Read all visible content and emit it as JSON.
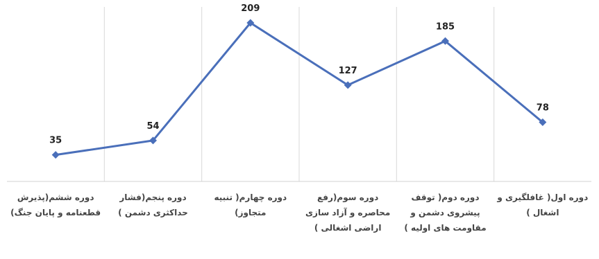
{
  "chart_data": {
    "type": "line",
    "title": "",
    "xlabel": "",
    "ylabel": "",
    "categories": [
      "دوره ششم(پذیرش قطعنامه و پایان جنگ)",
      "دوره پنجم(فشار حداکثری دشمن )",
      "دوره چهارم( تنبیه متجاوز)",
      "دوره سوم(رفع محاصره و آزاد سازی اراضی اشغالی )",
      "دوره دوم( توقف پیشروی دشمن و مقاومت های اولیه )",
      "دوره اول( غافلگیری و اشغال )"
    ],
    "series": [
      {
        "values": [
          35,
          54,
          209,
          127,
          185,
          78
        ]
      }
    ],
    "data_labels": [
      "35",
      "54",
      "209",
      "127",
      "185",
      "78"
    ],
    "ylim": [
      0,
      230
    ],
    "grid": "vertical",
    "line_color": "#4a6fba"
  }
}
